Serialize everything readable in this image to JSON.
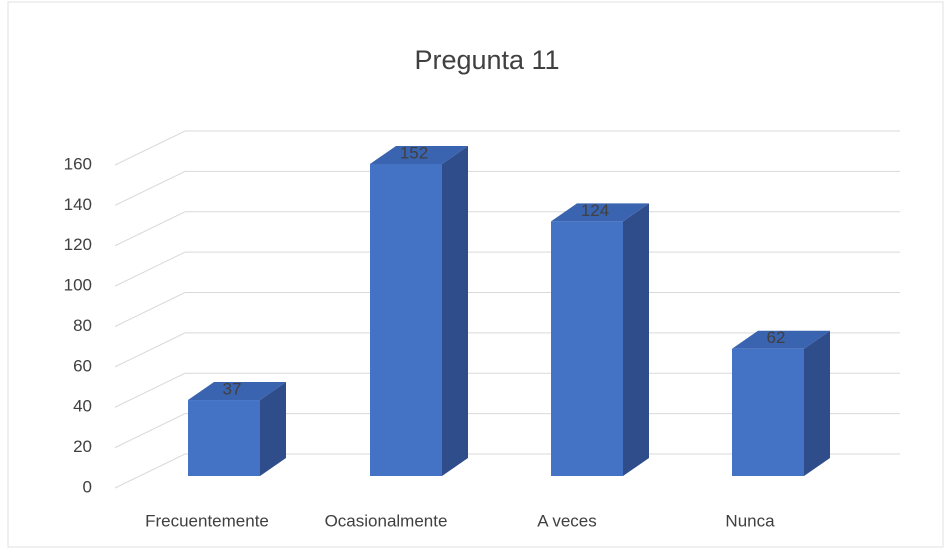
{
  "chart_data": {
    "type": "bar",
    "title": "Pregunta 11",
    "categories": [
      "Frecuentemente",
      "Ocasionalmente",
      "A veces",
      "Nunca"
    ],
    "values": [
      37,
      152,
      124,
      62
    ],
    "color": "#4472c4",
    "ylim": [
      0,
      160
    ],
    "yticks": [
      0,
      20,
      40,
      60,
      80,
      100,
      120,
      140,
      160
    ],
    "grid": true
  }
}
